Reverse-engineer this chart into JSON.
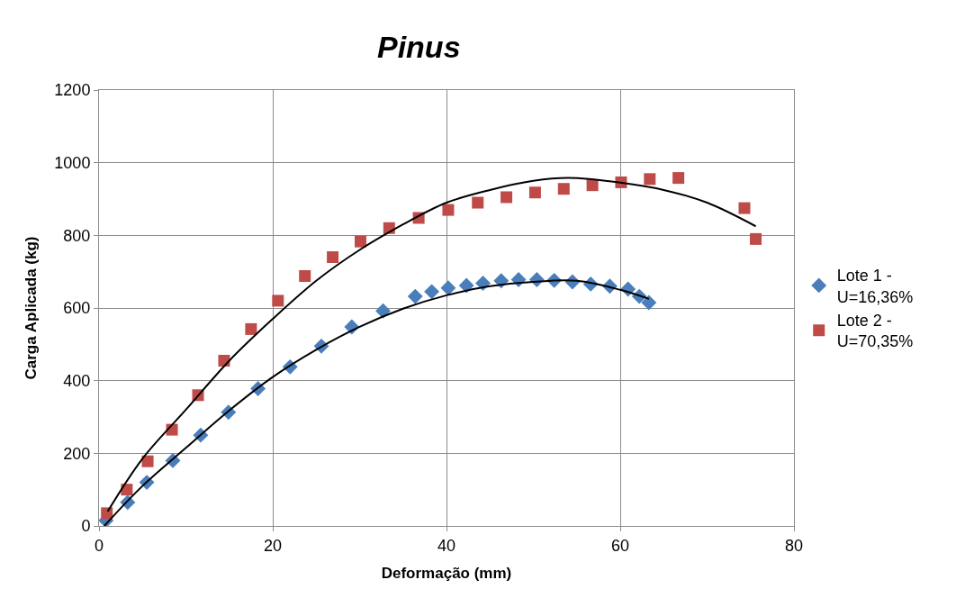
{
  "chart_data": {
    "type": "scatter",
    "title": "Pinus",
    "xlabel": "Deformação (mm)",
    "ylabel": "Carga Aplicada (kg)",
    "xlim": [
      0,
      80
    ],
    "xticks": [
      0,
      20,
      40,
      60,
      80
    ],
    "ylim": [
      0,
      1200
    ],
    "yticks": [
      0,
      200,
      400,
      600,
      800,
      1000,
      1200
    ],
    "grid": true,
    "legend": "right",
    "series": [
      {
        "name": "Lote 1 - U=16,36%",
        "color": "#4a7ebb",
        "marker": "diamond",
        "x": [
          0.8,
          3.3,
          5.5,
          8.5,
          11.7,
          14.9,
          18.3,
          22,
          25.6,
          29.1,
          32.7,
          36.4,
          38.3,
          40.2,
          42.3,
          44.2,
          46.3,
          48.3,
          50.4,
          52.4,
          54.5,
          56.6,
          58.8,
          60.9,
          62.2,
          63.3
        ],
        "values": [
          15,
          65,
          120,
          180,
          250,
          313,
          378,
          438,
          495,
          548,
          592,
          632,
          645,
          655,
          662,
          668,
          675,
          678,
          678,
          676,
          672,
          666,
          660,
          652,
          632,
          615
        ]
      },
      {
        "name": "Lote 2 - U=70,35%",
        "color": "#be4b48",
        "marker": "square",
        "x": [
          0.9,
          3.2,
          5.6,
          8.4,
          11.4,
          14.4,
          17.5,
          20.6,
          23.7,
          26.9,
          30.1,
          33.4,
          36.8,
          40.2,
          43.6,
          46.9,
          50.2,
          53.5,
          56.8,
          60.1,
          63.4,
          66.7,
          74.3,
          75.6
        ],
        "values": [
          35,
          100,
          178,
          265,
          360,
          455,
          542,
          620,
          688,
          740,
          783,
          820,
          848,
          870,
          890,
          905,
          918,
          928,
          938,
          946,
          955,
          958,
          875,
          790
        ]
      },
      {
        "type": "line",
        "color": "#000000",
        "marker": "none",
        "x": [
          0.6,
          5,
          10,
          15,
          20,
          25,
          30,
          35,
          40,
          45,
          50,
          55,
          60,
          63.3
        ],
        "values": [
          0,
          110,
          215,
          318,
          410,
          485,
          548,
          598,
          635,
          660,
          672,
          675,
          650,
          625
        ]
      },
      {
        "type": "line",
        "color": "#000000",
        "marker": "none",
        "x": [
          1,
          5,
          10,
          15,
          20,
          25,
          30,
          35,
          40,
          45,
          50,
          54,
          60,
          65,
          70,
          75.6
        ],
        "values": [
          40,
          185,
          320,
          455,
          570,
          675,
          760,
          830,
          890,
          925,
          950,
          958,
          945,
          925,
          890,
          825
        ]
      }
    ]
  }
}
